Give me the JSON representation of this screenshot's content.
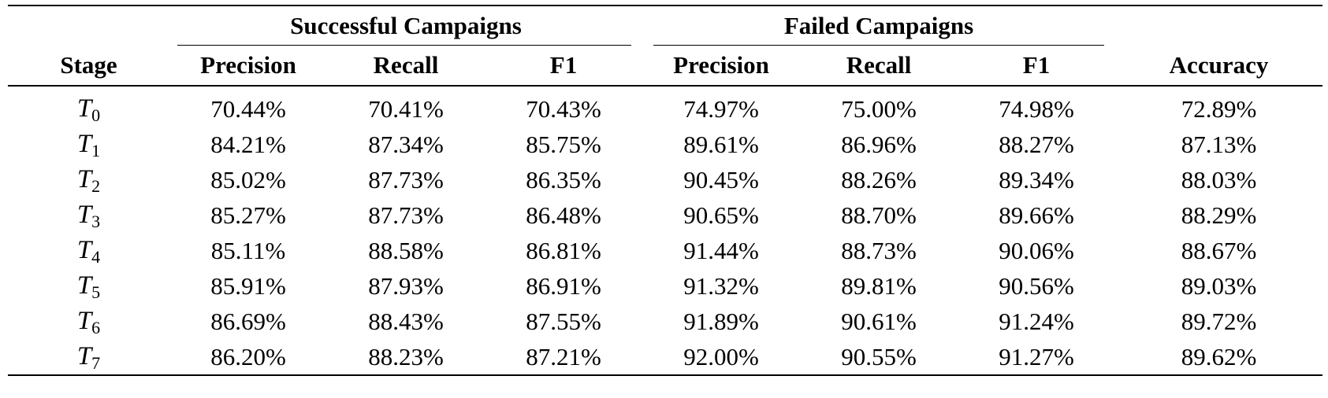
{
  "table": {
    "stage_header": "Stage",
    "group_headers": [
      "Successful Campaigns",
      "Failed Campaigns"
    ],
    "sub_headers": [
      "Precision",
      "Recall",
      "F1",
      "Precision",
      "Recall",
      "F1"
    ],
    "accuracy_header": "Accuracy",
    "rows": [
      {
        "stage": "T",
        "sub": "0",
        "values": [
          "70.44%",
          "70.41%",
          "70.43%",
          "74.97%",
          "75.00%",
          "74.98%",
          "72.89%"
        ]
      },
      {
        "stage": "T",
        "sub": "1",
        "values": [
          "84.21%",
          "87.34%",
          "85.75%",
          "89.61%",
          "86.96%",
          "88.27%",
          "87.13%"
        ]
      },
      {
        "stage": "T",
        "sub": "2",
        "values": [
          "85.02%",
          "87.73%",
          "86.35%",
          "90.45%",
          "88.26%",
          "89.34%",
          "88.03%"
        ]
      },
      {
        "stage": "T",
        "sub": "3",
        "values": [
          "85.27%",
          "87.73%",
          "86.48%",
          "90.65%",
          "88.70%",
          "89.66%",
          "88.29%"
        ]
      },
      {
        "stage": "T",
        "sub": "4",
        "values": [
          "85.11%",
          "88.58%",
          "86.81%",
          "91.44%",
          "88.73%",
          "90.06%",
          "88.67%"
        ]
      },
      {
        "stage": "T",
        "sub": "5",
        "values": [
          "85.91%",
          "87.93%",
          "86.91%",
          "91.32%",
          "89.81%",
          "90.56%",
          "89.03%"
        ]
      },
      {
        "stage": "T",
        "sub": "6",
        "values": [
          "86.69%",
          "88.43%",
          "87.55%",
          "91.89%",
          "90.61%",
          "91.24%",
          "89.72%"
        ]
      },
      {
        "stage": "T",
        "sub": "7",
        "values": [
          "86.20%",
          "88.23%",
          "87.21%",
          "92.00%",
          "90.55%",
          "91.27%",
          "89.62%"
        ]
      }
    ]
  }
}
